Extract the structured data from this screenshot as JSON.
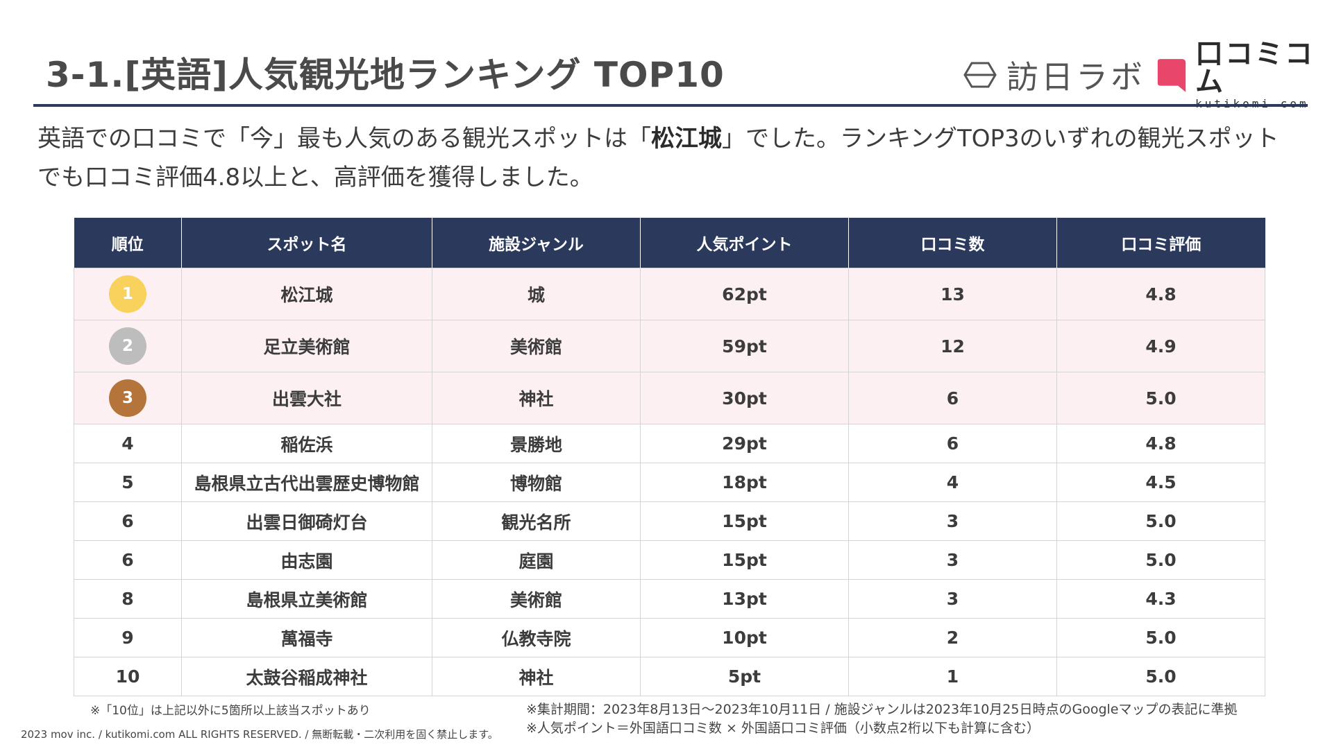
{
  "title": "3-1.[英語]人気観光地ランキング TOP10",
  "logos": {
    "houtiti": "訪日ラボ",
    "kuchikomi_jp": "口コミコム",
    "kuchikomi_en": "kutikomi com",
    "kuchikomi_color": "#e8466a"
  },
  "intro": {
    "part1": "英語での口コミで「今」最も人気のある観光スポットは「",
    "highlight": "松江城",
    "part2": "」でした。ランキングTOP3のいずれの観光スポットでも口コミ評価4.8以上と、高評価を獲得しました。"
  },
  "table": {
    "headers": [
      "順位",
      "スポット名",
      "施設ジャンル",
      "人気ポイント",
      "口コミ数",
      "口コミ評価"
    ],
    "rows": [
      {
        "rank": "1",
        "name": "松江城",
        "genre": "城",
        "points": "62pt",
        "reviews": "13",
        "rating": "4.8",
        "medal": "#f8d25c"
      },
      {
        "rank": "2",
        "name": "足立美術館",
        "genre": "美術館",
        "points": "59pt",
        "reviews": "12",
        "rating": "4.9",
        "medal": "#bdbdbd"
      },
      {
        "rank": "3",
        "name": "出雲大社",
        "genre": "神社",
        "points": "30pt",
        "reviews": "6",
        "rating": "5.0",
        "medal": "#b5743a"
      },
      {
        "rank": "4",
        "name": "稲佐浜",
        "genre": "景勝地",
        "points": "29pt",
        "reviews": "6",
        "rating": "4.8"
      },
      {
        "rank": "5",
        "name": "島根県立古代出雲歴史博物館",
        "genre": "博物館",
        "points": "18pt",
        "reviews": "4",
        "rating": "4.5"
      },
      {
        "rank": "6",
        "name": "出雲日御碕灯台",
        "genre": "観光名所",
        "points": "15pt",
        "reviews": "3",
        "rating": "5.0"
      },
      {
        "rank": "6",
        "name": "由志園",
        "genre": "庭園",
        "points": "15pt",
        "reviews": "3",
        "rating": "5.0"
      },
      {
        "rank": "8",
        "name": "島根県立美術館",
        "genre": "美術館",
        "points": "13pt",
        "reviews": "3",
        "rating": "4.3"
      },
      {
        "rank": "9",
        "name": "萬福寺",
        "genre": "仏教寺院",
        "points": "10pt",
        "reviews": "2",
        "rating": "5.0"
      },
      {
        "rank": "10",
        "name": "太鼓谷稲成神社",
        "genre": "神社",
        "points": "5pt",
        "reviews": "1",
        "rating": "5.0"
      }
    ]
  },
  "notes": {
    "left": "※「10位」は上記以外に5箇所以上該当スポットあり",
    "right1": "※集計期間：2023年8月13日〜2023年10月11日 / 施設ジャンルは2023年10月25日時点のGoogleマップの表記に準拠",
    "right2": "※人気ポイント＝外国語口コミ数 × 外国語口コミ評価（小数点2桁以下も計算に含む）"
  },
  "copyright": "2023 mov inc. / kutikomi.com ALL RIGHTS RESERVED. / 無断転載・二次利用を固く禁止します。"
}
